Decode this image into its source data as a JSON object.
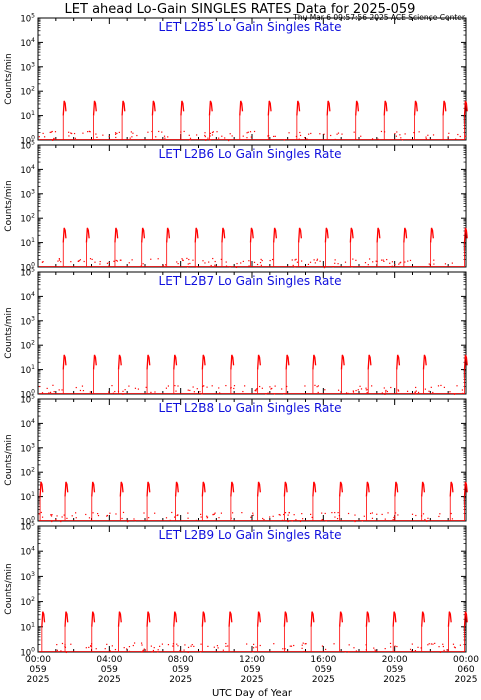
{
  "page": {
    "title": "LET ahead Lo-Gain SINGLES RATES Data for 2025-059",
    "timestamp": "Thu Mar  6 09:57:56 2025 ACE Science Center",
    "x_axis_label": "UTC Day of Year"
  },
  "colors": {
    "data": "#ff0000",
    "panel_title": "#1010dd",
    "axes": "#000000"
  },
  "chart_data": [
    {
      "type": "line",
      "title": "LET L2B5 Lo Gain Singles Rate",
      "ylabel": "Counts/min",
      "y_scale": "log",
      "ylim": [
        1,
        100000
      ],
      "y_ticks": [
        "10^0",
        "10^1",
        "10^2",
        "10^3",
        "10^4",
        "10^5"
      ],
      "xlim_hours": [
        0,
        24
      ],
      "x_ticks": [
        {
          "time": "00:00",
          "day": "059",
          "year": "2025"
        },
        {
          "time": "04:00",
          "day": "059",
          "year": "2025"
        },
        {
          "time": "08:00",
          "day": "059",
          "year": "2025"
        },
        {
          "time": "12:00",
          "day": "059",
          "year": "2025"
        },
        {
          "time": "16:00",
          "day": "059",
          "year": "2025"
        },
        {
          "time": "20:00",
          "day": "059",
          "year": "2025"
        },
        {
          "time": "00:00",
          "day": "060",
          "year": "2025"
        }
      ],
      "spike_hours": [
        1.5,
        3.2,
        4.8,
        6.5,
        8.1,
        9.7,
        11.4,
        13.0,
        14.6,
        16.3,
        17.9,
        19.5,
        21.2,
        22.8,
        24.0
      ],
      "spike_peak": 40,
      "spike_base": 10
    },
    {
      "type": "line",
      "title": "LET L2B6 Lo Gain Singles Rate",
      "ylabel": "Counts/min",
      "y_scale": "log",
      "ylim": [
        1,
        100000
      ],
      "y_ticks": [
        "10^0",
        "10^1",
        "10^2",
        "10^3",
        "10^4",
        "10^5"
      ],
      "xlim_hours": [
        0,
        24
      ],
      "x_ticks": [
        {
          "time": "00:00",
          "day": "059",
          "year": "2025"
        },
        {
          "time": "04:00",
          "day": "059",
          "year": "2025"
        },
        {
          "time": "08:00",
          "day": "059",
          "year": "2025"
        },
        {
          "time": "12:00",
          "day": "059",
          "year": "2025"
        },
        {
          "time": "16:00",
          "day": "059",
          "year": "2025"
        },
        {
          "time": "20:00",
          "day": "059",
          "year": "2025"
        },
        {
          "time": "00:00",
          "day": "060",
          "year": "2025"
        }
      ],
      "spike_hours": [
        1.5,
        2.8,
        4.4,
        5.9,
        7.3,
        8.9,
        10.4,
        12.0,
        13.3,
        14.7,
        16.2,
        17.6,
        19.1,
        20.6,
        22.1,
        24.0
      ],
      "spike_peak": 40,
      "spike_base": 10
    },
    {
      "type": "line",
      "title": "LET L2B7 Lo Gain Singles Rate",
      "ylabel": "Counts/min",
      "y_scale": "log",
      "ylim": [
        1,
        100000
      ],
      "y_ticks": [
        "10^0",
        "10^1",
        "10^2",
        "10^3",
        "10^4",
        "10^5"
      ],
      "xlim_hours": [
        0,
        24
      ],
      "x_ticks": [
        {
          "time": "00:00",
          "day": "059",
          "year": "2025"
        },
        {
          "time": "04:00",
          "day": "059",
          "year": "2025"
        },
        {
          "time": "08:00",
          "day": "059",
          "year": "2025"
        },
        {
          "time": "12:00",
          "day": "059",
          "year": "2025"
        },
        {
          "time": "16:00",
          "day": "059",
          "year": "2025"
        },
        {
          "time": "20:00",
          "day": "059",
          "year": "2025"
        },
        {
          "time": "00:00",
          "day": "060",
          "year": "2025"
        }
      ],
      "spike_hours": [
        1.5,
        3.2,
        4.6,
        6.2,
        7.7,
        9.3,
        10.9,
        12.4,
        14.0,
        15.5,
        17.1,
        18.6,
        20.2,
        21.7,
        24.0
      ],
      "spike_peak": 40,
      "spike_base": 10
    },
    {
      "type": "line",
      "title": "LET L2B8 Lo Gain Singles Rate",
      "ylabel": "Counts/min",
      "y_scale": "log",
      "ylim": [
        1,
        100000
      ],
      "y_ticks": [
        "10^0",
        "10^1",
        "10^2",
        "10^3",
        "10^4",
        "10^5"
      ],
      "xlim_hours": [
        0,
        24
      ],
      "x_ticks": [
        {
          "time": "00:00",
          "day": "059",
          "year": "2025"
        },
        {
          "time": "04:00",
          "day": "059",
          "year": "2025"
        },
        {
          "time": "08:00",
          "day": "059",
          "year": "2025"
        },
        {
          "time": "12:00",
          "day": "059",
          "year": "2025"
        },
        {
          "time": "16:00",
          "day": "059",
          "year": "2025"
        },
        {
          "time": "20:00",
          "day": "059",
          "year": "2025"
        },
        {
          "time": "00:00",
          "day": "060",
          "year": "2025"
        }
      ],
      "spike_hours": [
        0.2,
        1.6,
        3.1,
        4.7,
        6.2,
        7.8,
        9.3,
        10.9,
        12.4,
        13.9,
        15.5,
        17.0,
        18.5,
        20.1,
        21.6,
        23.2,
        24.0
      ],
      "spike_peak": 40,
      "spike_base": 10
    },
    {
      "type": "line",
      "title": "LET L2B9 Lo Gain Singles Rate",
      "ylabel": "Counts/min",
      "y_scale": "log",
      "ylim": [
        1,
        100000
      ],
      "y_ticks": [
        "10^0",
        "10^1",
        "10^2",
        "10^3",
        "10^4",
        "10^5"
      ],
      "xlim_hours": [
        0,
        24
      ],
      "x_ticks": [
        {
          "time": "00:00",
          "day": "059",
          "year": "2025"
        },
        {
          "time": "04:00",
          "day": "059",
          "year": "2025"
        },
        {
          "time": "08:00",
          "day": "059",
          "year": "2025"
        },
        {
          "time": "12:00",
          "day": "059",
          "year": "2025"
        },
        {
          "time": "16:00",
          "day": "059",
          "year": "2025"
        },
        {
          "time": "20:00",
          "day": "059",
          "year": "2025"
        },
        {
          "time": "00:00",
          "day": "060",
          "year": "2025"
        }
      ],
      "spike_hours": [
        0.3,
        1.6,
        3.1,
        4.6,
        6.2,
        7.7,
        9.3,
        10.8,
        12.4,
        13.9,
        15.4,
        17.0,
        18.5,
        20.0,
        21.6,
        23.1,
        24.0
      ],
      "spike_peak": 40,
      "spike_base": 10
    }
  ]
}
